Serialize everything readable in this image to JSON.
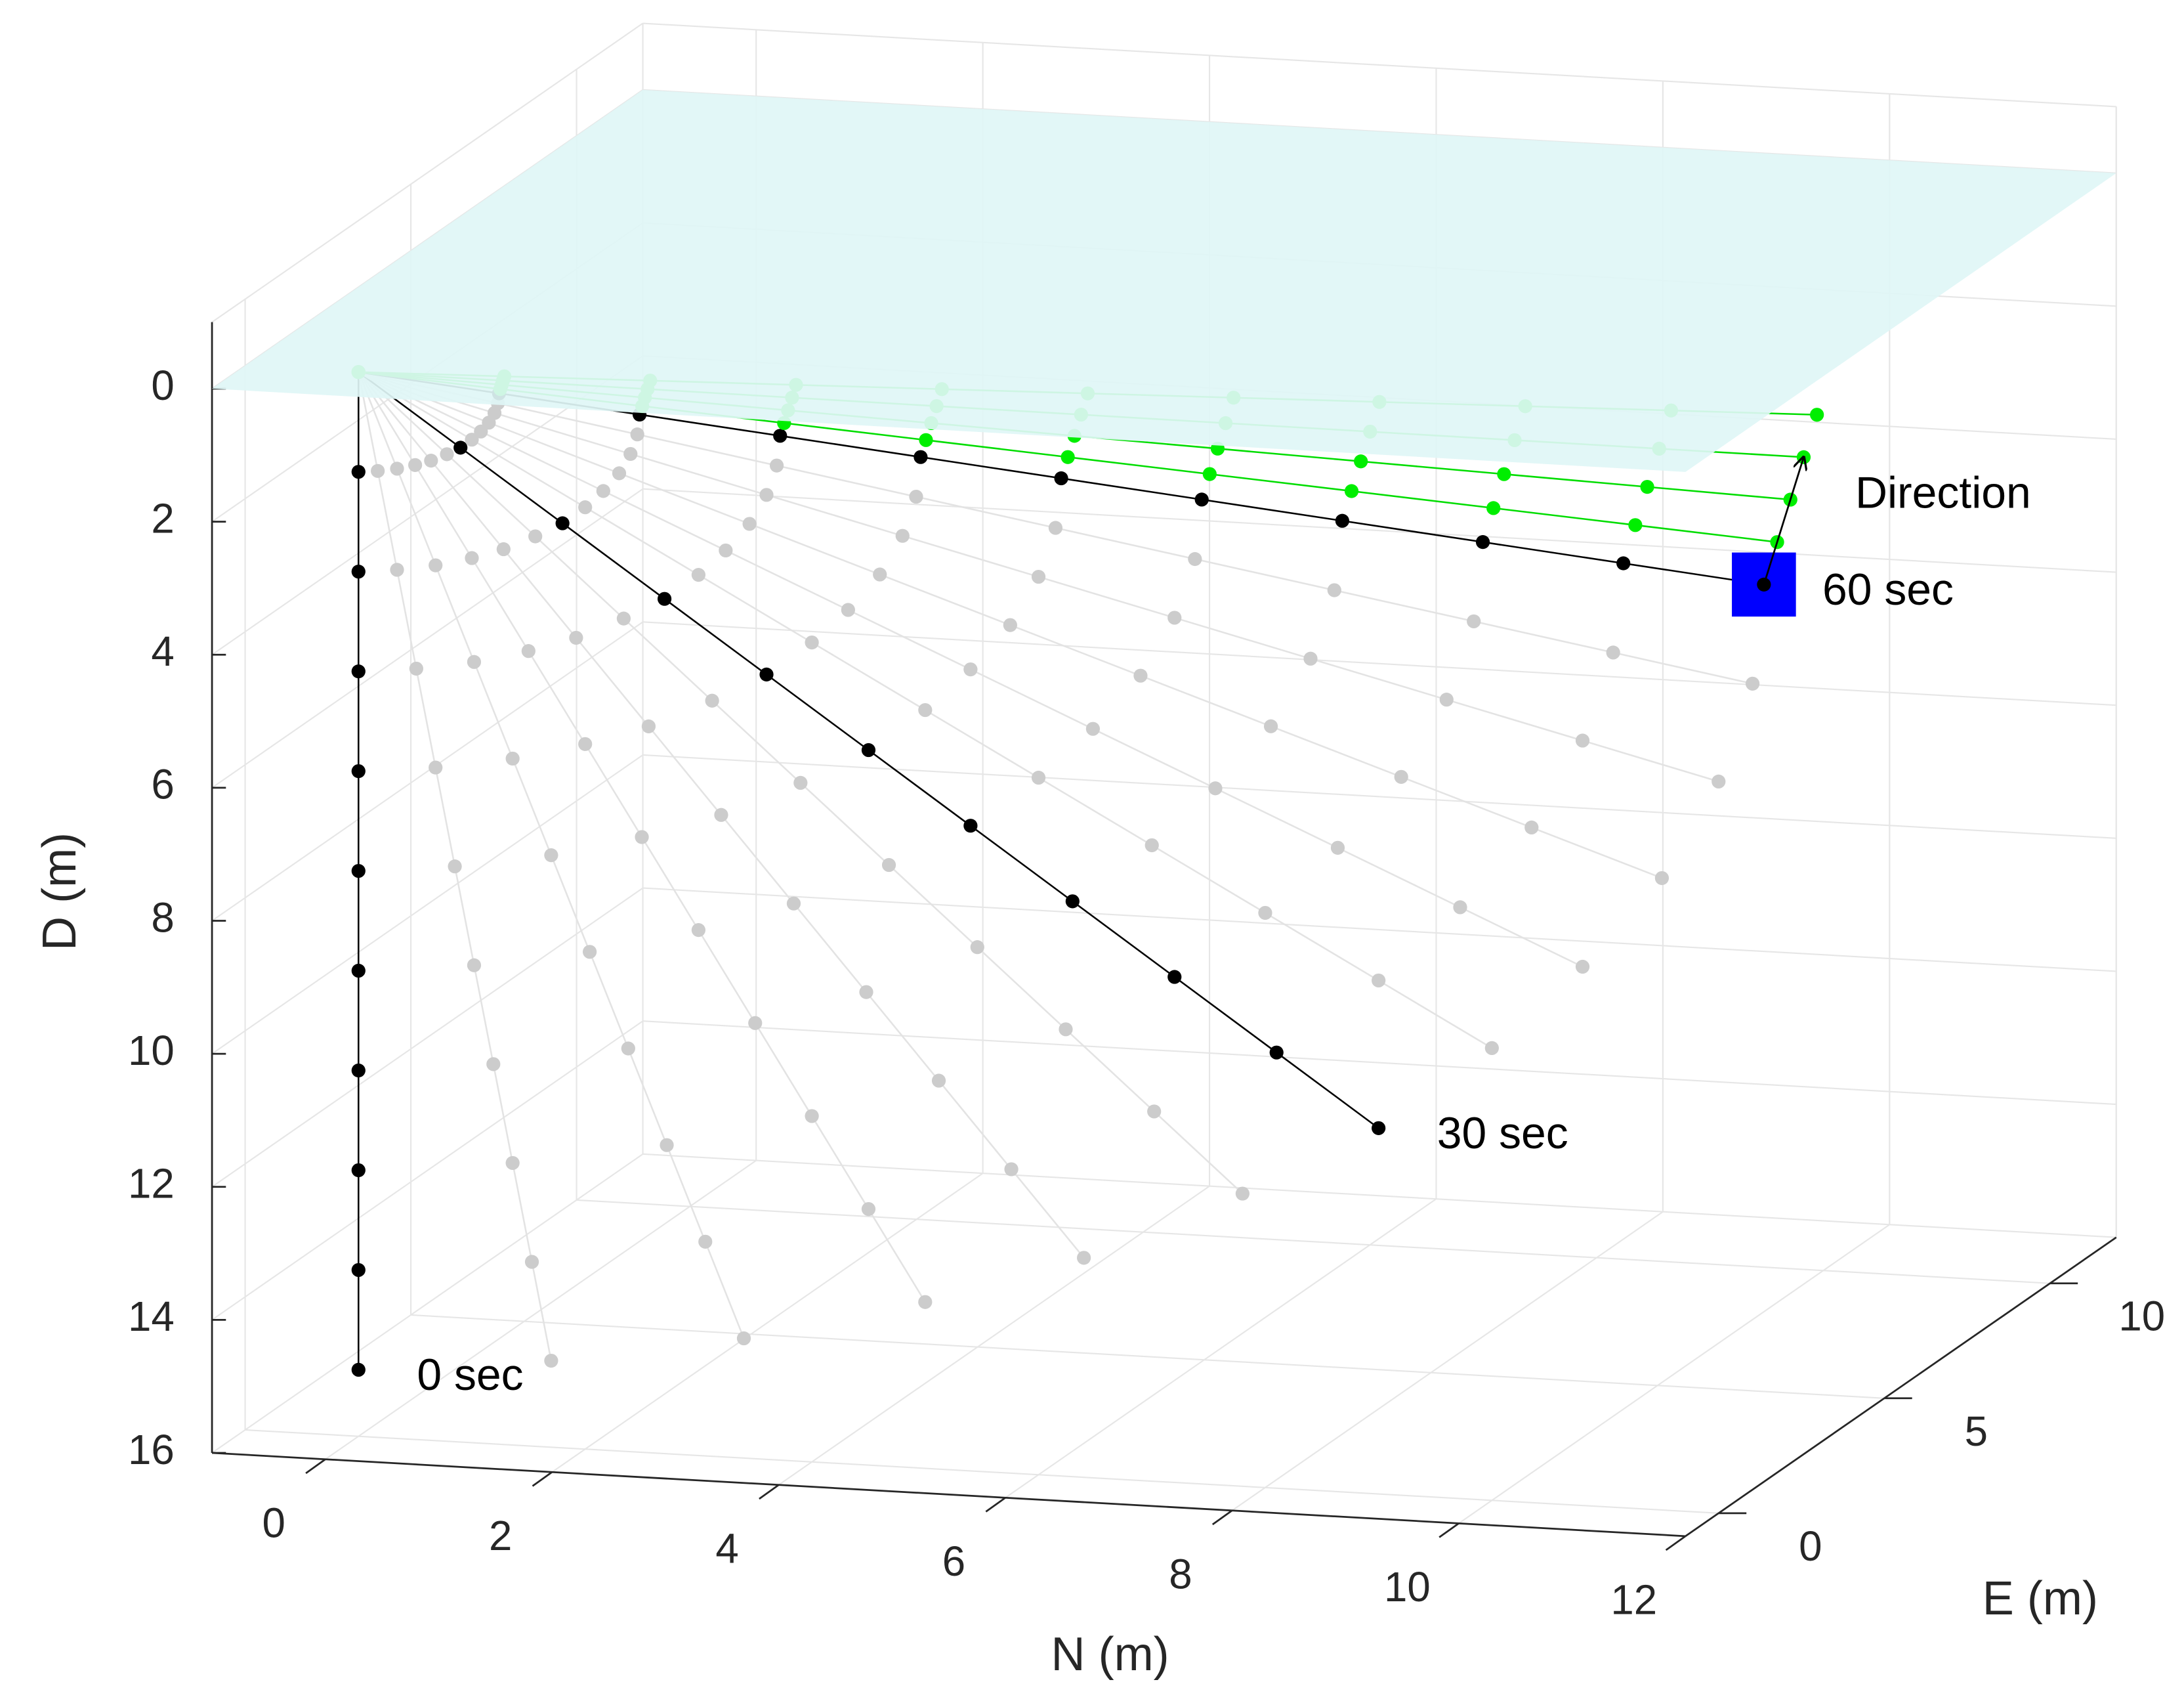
{
  "chart_data": {
    "type": "line3d",
    "xlabel": "N (m)",
    "ylabel": "E (m)",
    "zlabel": "D (m)",
    "xlim": [
      -1,
      12
    ],
    "ylim": [
      -1,
      12
    ],
    "zlim": [
      -1,
      16
    ],
    "zdir": "reverse",
    "grid": true,
    "xticks": [
      0,
      2,
      4,
      6,
      8,
      10,
      12
    ],
    "yticks": [
      0,
      5,
      10
    ],
    "zticks": [
      0,
      2,
      4,
      6,
      8,
      10,
      12,
      14,
      16
    ],
    "surface": {
      "d": 0,
      "color": "#e0f6f6"
    },
    "marker_box_color": "#0000ff",
    "lines": [
      {
        "line_color": "#000000",
        "marker_color": "#000000",
        "n": [
          0,
          0,
          0,
          0,
          0,
          0,
          0,
          0,
          0,
          0,
          0
        ],
        "e": [
          0,
          0,
          0,
          0,
          0,
          0,
          0,
          0,
          0,
          0,
          0
        ],
        "d": [
          0,
          1.5,
          3,
          4.5,
          6,
          7.5,
          9,
          10.5,
          12,
          13.5,
          15
        ]
      },
      {
        "line_color": "#e3e3e3",
        "marker_color": "#cccccc",
        "n": [
          0,
          0.17,
          0.34,
          0.51,
          0.68,
          0.85,
          1.02,
          1.19,
          1.36,
          1.53,
          1.7
        ],
        "e": [
          0,
          0,
          0,
          0,
          0,
          0,
          0,
          0,
          0,
          0,
          0
        ],
        "d": [
          0,
          1.47,
          2.94,
          4.41,
          5.88,
          7.35,
          8.82,
          10.29,
          11.76,
          13.23,
          14.7
        ]
      },
      {
        "line_color": "#e3e3e3",
        "marker_color": "#cccccc",
        "n": [
          0,
          0.34,
          0.68,
          1.02,
          1.36,
          1.7,
          2.04,
          2.38,
          2.72,
          3.06,
          3.4
        ],
        "e": [
          0,
          0,
          0,
          0,
          0,
          0,
          0,
          0,
          0,
          0,
          0
        ],
        "d": [
          0,
          1.42,
          2.84,
          4.26,
          5.68,
          7.1,
          8.52,
          9.94,
          11.36,
          12.78,
          14.2
        ]
      },
      {
        "line_color": "#e3e3e3",
        "marker_color": "#cccccc",
        "n": [
          0,
          0.5,
          1,
          1.5,
          2,
          2.5,
          3,
          3.5,
          4,
          4.5,
          5
        ],
        "e": [
          0,
          0,
          0,
          0,
          0,
          0,
          0,
          0,
          0,
          0,
          0
        ],
        "d": [
          0,
          1.35,
          2.7,
          4.05,
          5.4,
          6.75,
          8.1,
          9.45,
          10.8,
          12.15,
          13.5
        ]
      },
      {
        "line_color": "#e3e3e3",
        "marker_color": "#cccccc",
        "n": [
          0,
          0.64,
          1.28,
          1.92,
          2.56,
          3.2,
          3.84,
          4.48,
          5.12,
          5.76,
          6.4
        ],
        "e": [
          0,
          0,
          0,
          0,
          0,
          0,
          0,
          0,
          0,
          0,
          0
        ],
        "d": [
          0,
          1.27,
          2.54,
          3.81,
          5.08,
          6.35,
          7.62,
          8.89,
          10.16,
          11.43,
          12.7
        ]
      },
      {
        "line_color": "#e3e3e3",
        "marker_color": "#cccccc",
        "n": [
          0,
          0.78,
          1.56,
          2.34,
          3.12,
          3.9,
          4.68,
          5.46,
          6.24,
          7.02,
          7.8
        ],
        "e": [
          0,
          0,
          0,
          0,
          0,
          0,
          0,
          0,
          0,
          0,
          0
        ],
        "d": [
          0,
          1.16,
          2.32,
          3.48,
          4.64,
          5.8,
          6.96,
          8.12,
          9.28,
          10.44,
          11.6
        ]
      },
      {
        "line_color": "#000000",
        "marker_color": "#000000",
        "n": [
          0,
          0.9,
          1.8,
          2.7,
          3.6,
          4.5,
          5.4,
          6.3,
          7.2,
          8.1,
          9
        ],
        "e": [
          0,
          0,
          0,
          0,
          0,
          0,
          0,
          0,
          0,
          0,
          0
        ],
        "d": [
          0,
          1.05,
          2.1,
          3.15,
          4.2,
          5.25,
          6.3,
          7.35,
          8.4,
          9.45,
          10.5
        ]
      },
      {
        "line_color": "#e3e3e3",
        "marker_color": "#cccccc",
        "n": [
          0,
          1,
          2,
          3,
          4,
          5,
          6,
          7,
          8,
          9,
          10
        ],
        "e": [
          0,
          0,
          0,
          0,
          0,
          0,
          0,
          0,
          0,
          0,
          0
        ],
        "d": [
          0,
          0.92,
          1.84,
          2.76,
          3.68,
          4.6,
          5.52,
          6.44,
          7.36,
          8.28,
          9.2
        ]
      },
      {
        "line_color": "#e3e3e3",
        "marker_color": "#cccccc",
        "n": [
          0,
          1.08,
          2.16,
          3.24,
          4.32,
          5.4,
          6.48,
          7.56,
          8.64,
          9.72,
          10.8
        ],
        "e": [
          0,
          0,
          0,
          0,
          0,
          0,
          0,
          0,
          0,
          0,
          0
        ],
        "d": [
          0,
          0.79,
          1.58,
          2.37,
          3.16,
          3.95,
          4.74,
          5.53,
          6.32,
          7.11,
          7.9
        ]
      },
      {
        "line_color": "#e3e3e3",
        "marker_color": "#cccccc",
        "n": [
          0,
          1.15,
          2.3,
          3.45,
          4.6,
          5.75,
          6.9,
          8.05,
          9.2,
          10.35,
          11.5
        ],
        "e": [
          0,
          0,
          0,
          0,
          0,
          0,
          0,
          0,
          0,
          0,
          0
        ],
        "d": [
          0,
          0.65,
          1.3,
          1.95,
          2.6,
          3.25,
          3.9,
          4.55,
          5.2,
          5.85,
          6.5
        ]
      },
      {
        "line_color": "#e3e3e3",
        "marker_color": "#cccccc",
        "n": [
          0,
          1.2,
          2.4,
          3.6,
          4.8,
          6,
          7.2,
          8.4,
          9.6,
          10.8,
          12
        ],
        "e": [
          0,
          0,
          0,
          0,
          0,
          0,
          0,
          0,
          0,
          0,
          0
        ],
        "d": [
          0,
          0.5,
          1,
          1.5,
          2,
          2.5,
          3,
          3.5,
          4,
          4.5,
          5
        ]
      },
      {
        "line_color": "#e3e3e3",
        "marker_color": "#cccccc",
        "n": [
          0,
          1.23,
          2.46,
          3.69,
          4.92,
          6.15,
          7.38,
          8.61,
          9.84,
          11.07,
          12.3
        ],
        "e": [
          0,
          0,
          0,
          0,
          0,
          0,
          0,
          0,
          0,
          0,
          0
        ],
        "d": [
          0,
          0.35,
          0.7,
          1.05,
          1.4,
          1.75,
          2.1,
          2.45,
          2.8,
          3.15,
          3.5
        ]
      },
      {
        "line_color": "#000000",
        "marker_color": "#000000",
        "n": [
          0,
          1.24,
          2.48,
          3.72,
          4.96,
          6.2,
          7.44,
          8.68,
          9.92,
          11.16,
          12.4
        ],
        "e": [
          0,
          0,
          0,
          0,
          0,
          0,
          0,
          0,
          0,
          0,
          0
        ],
        "d": [
          0,
          0.2,
          0.4,
          0.6,
          0.8,
          1,
          1.2,
          1.4,
          1.6,
          1.8,
          2
        ]
      },
      {
        "line_color": "#00dd00",
        "marker_color": "#00ee00",
        "n": [
          0,
          1.24,
          2.48,
          3.72,
          4.96,
          6.2,
          7.44,
          8.68,
          9.92,
          11.16,
          12.4
        ],
        "e": [
          0,
          0.04,
          0.08,
          0.12,
          0.16,
          0.2,
          0.24,
          0.28,
          0.32,
          0.36,
          0.4
        ],
        "d": [
          0,
          0.15,
          0.3,
          0.45,
          0.6,
          0.75,
          0.9,
          1.05,
          1.2,
          1.35,
          1.5
        ]
      },
      {
        "line_color": "#00dd00",
        "marker_color": "#00ee00",
        "n": [
          0,
          1.24,
          2.48,
          3.72,
          4.96,
          6.2,
          7.44,
          8.68,
          9.92,
          11.16,
          12.4
        ],
        "e": [
          0,
          0.08,
          0.16,
          0.24,
          0.32,
          0.4,
          0.48,
          0.56,
          0.64,
          0.72,
          0.8
        ],
        "d": [
          0,
          0.1,
          0.2,
          0.3,
          0.4,
          0.5,
          0.6,
          0.7,
          0.8,
          0.9,
          1
        ]
      },
      {
        "line_color": "#00dd00",
        "marker_color": "#00ee00",
        "n": [
          0,
          1.24,
          2.48,
          3.72,
          4.96,
          6.2,
          7.44,
          8.68,
          9.92,
          11.16,
          12.4
        ],
        "e": [
          0,
          0.12,
          0.24,
          0.36,
          0.48,
          0.6,
          0.72,
          0.84,
          0.96,
          1.08,
          1.2
        ],
        "d": [
          0,
          0.05,
          0.1,
          0.15,
          0.2,
          0.25,
          0.3,
          0.35,
          0.4,
          0.45,
          0.5
        ]
      },
      {
        "line_color": "#00dd00",
        "marker_color": "#00ee00",
        "n": [
          0,
          1.24,
          2.48,
          3.72,
          4.96,
          6.2,
          7.44,
          8.68,
          9.92,
          11.16,
          12.4
        ],
        "e": [
          0,
          0.16,
          0.32,
          0.48,
          0.64,
          0.8,
          0.96,
          1.12,
          1.28,
          1.44,
          1.6
        ],
        "d": [
          0,
          0,
          0,
          0,
          0,
          0,
          0,
          0,
          0,
          0,
          0
        ]
      }
    ],
    "annotations": [
      "0 sec",
      "30 sec",
      "60 sec",
      "Direction"
    ]
  }
}
